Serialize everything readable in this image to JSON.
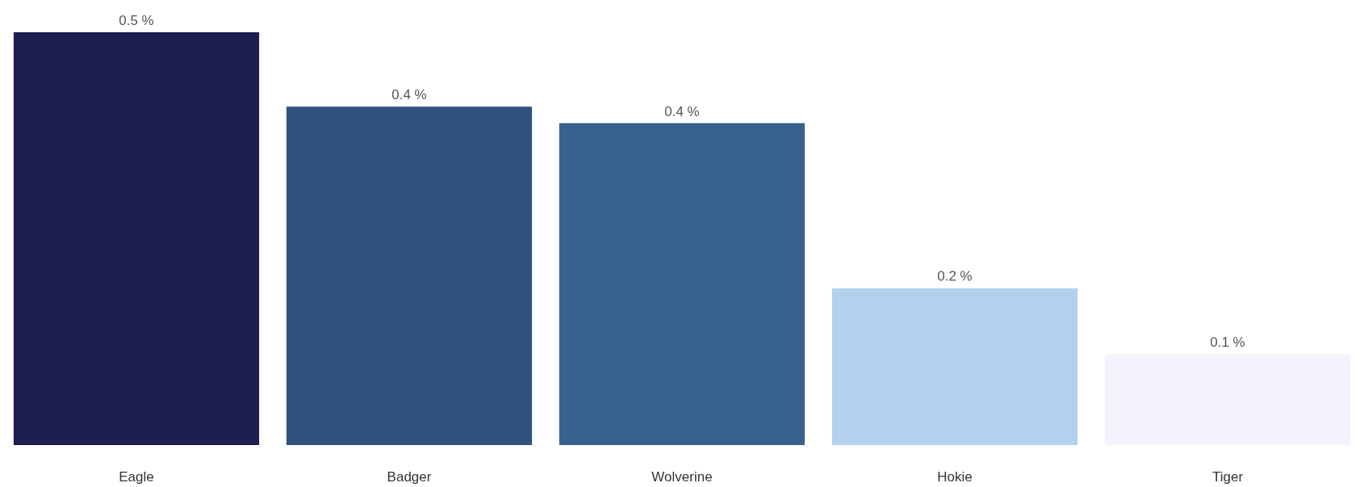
{
  "chart_data": {
    "type": "bar",
    "categories": [
      "Eagle",
      "Badger",
      "Wolverine",
      "Hokie",
      "Tiger"
    ],
    "values": [
      0.5,
      0.41,
      0.39,
      0.19,
      0.11
    ],
    "colors": [
      "#1e1e50",
      "#2f527e",
      "#38628e",
      "#b3d1ed",
      "#f3f2fd"
    ],
    "value_labels": [
      "0.5 %",
      "0.4 %",
      "0.4 %",
      "0.2 %",
      "0.1 %"
    ],
    "ylim": [
      0,
      0.5
    ],
    "tick_labels": "x"
  }
}
